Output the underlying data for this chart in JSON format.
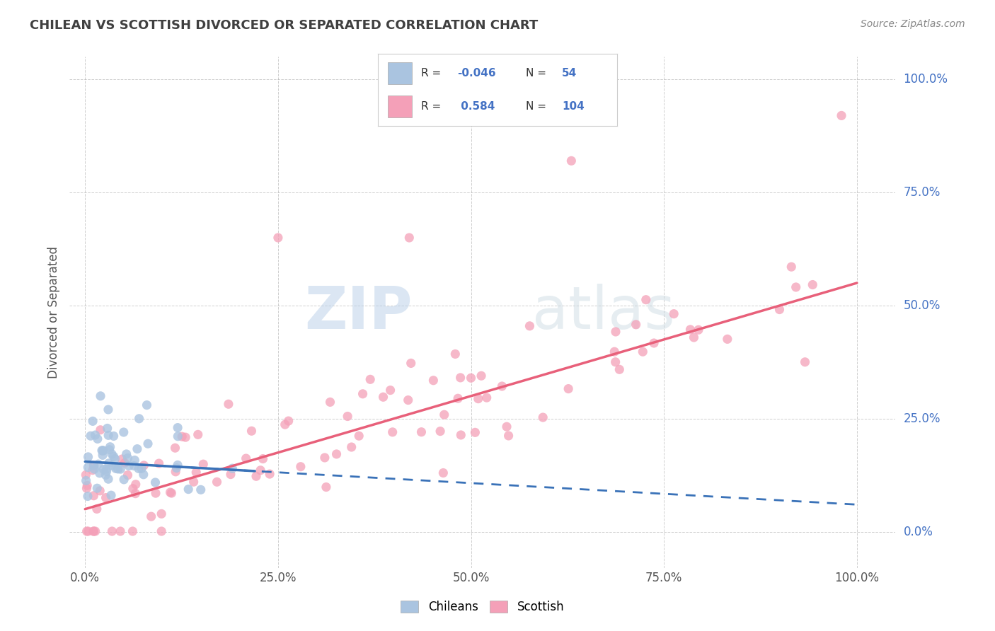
{
  "title": "CHILEAN VS SCOTTISH DIVORCED OR SEPARATED CORRELATION CHART",
  "source": "Source: ZipAtlas.com",
  "ylabel": "Divorced or Separated",
  "legend_labels": [
    "Chileans",
    "Scottish"
  ],
  "chilean_color": "#aac4e0",
  "scottish_color": "#f4a0b8",
  "chilean_line_color": "#3a72b8",
  "scottish_line_color": "#e8607a",
  "R_chilean": -0.046,
  "N_chilean": 54,
  "R_scottish": 0.584,
  "N_scottish": 104,
  "xlim": [
    -0.02,
    1.05
  ],
  "ylim": [
    -0.08,
    1.05
  ],
  "x_ticks": [
    0.0,
    0.25,
    0.5,
    0.75,
    1.0
  ],
  "y_ticks": [
    0.0,
    0.25,
    0.5,
    0.75,
    1.0
  ],
  "x_tick_labels": [
    "0.0%",
    "25.0%",
    "50.0%",
    "75.0%",
    "100.0%"
  ],
  "y_tick_labels": [
    "0.0%",
    "25.0%",
    "50.0%",
    "75.0%",
    "100.0%"
  ],
  "background_color": "#ffffff",
  "grid_color": "#b0b0b0",
  "watermark_zip": "ZIP",
  "watermark_atlas": "atlas",
  "scottish_line_x0": 0.0,
  "scottish_line_y0": 0.05,
  "scottish_line_x1": 1.0,
  "scottish_line_y1": 0.55,
  "chilean_line_x0": 0.0,
  "chilean_line_y0": 0.155,
  "chilean_line_x1": 1.0,
  "chilean_line_y1": 0.06
}
